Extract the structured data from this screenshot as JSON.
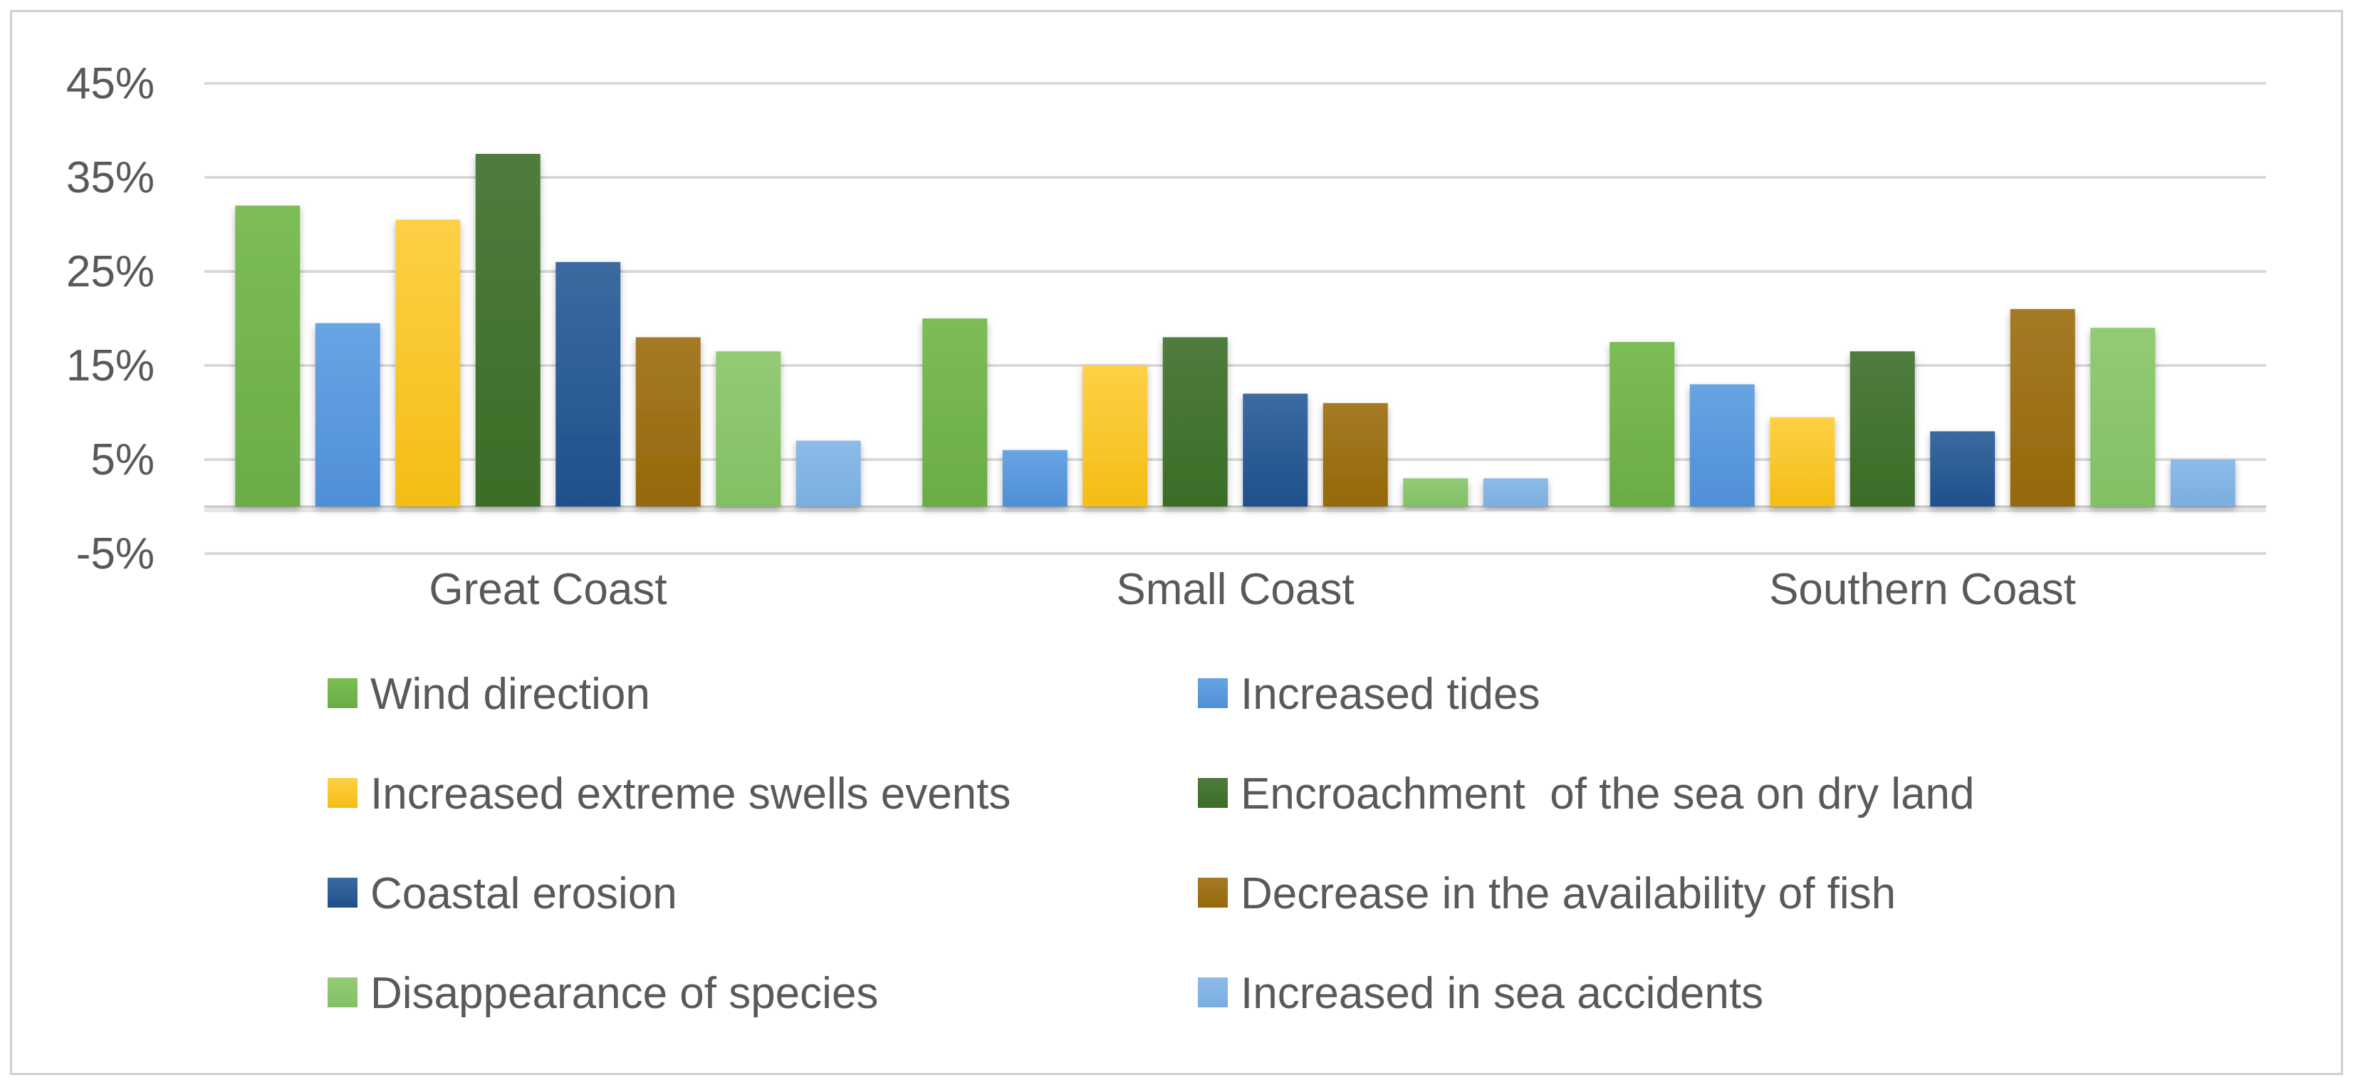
{
  "chart_data": {
    "type": "bar",
    "title": "",
    "xlabel": "",
    "ylabel": "",
    "ylim": [
      -5,
      45
    ],
    "yticks": [
      "45%",
      "35%",
      "25%",
      "15%",
      "5%",
      "-5%"
    ],
    "ytick_values": [
      45,
      35,
      25,
      15,
      5,
      -5
    ],
    "grid": true,
    "legend_position": "bottom",
    "categories": [
      "Great Coast",
      "Small Coast",
      "Southern Coast"
    ],
    "series": [
      {
        "name": "Wind direction",
        "values": [
          32,
          20,
          17.5
        ],
        "color": "#6aac45",
        "color_light": "#7cbd55"
      },
      {
        "name": "Increased tides",
        "values": [
          19.5,
          6,
          13
        ],
        "color": "#4f8fd6",
        "color_light": "#67a4e4"
      },
      {
        "name": "Increased extreme swells events",
        "values": [
          30.5,
          15,
          9.5
        ],
        "color": "#f4bd15",
        "color_light": "#fed046"
      },
      {
        "name": "Encroachment  of the sea on dry land",
        "values": [
          37.5,
          18,
          16.5
        ],
        "color": "#3b6d27",
        "color_light": "#4f7c3d"
      },
      {
        "name": "Coastal erosion",
        "values": [
          26,
          12,
          8
        ],
        "color": "#1f508c",
        "color_light": "#3b6aa0"
      },
      {
        "name": "Decrease in the availability of fish",
        "values": [
          18,
          11,
          21
        ],
        "color": "#946909",
        "color_light": "#a57a26"
      },
      {
        "name": "Disappearance of species",
        "values": [
          16.5,
          3,
          19
        ],
        "color": "#82c064",
        "color_light": "#93ca76"
      },
      {
        "name": "Increased in sea accidents",
        "values": [
          7,
          3,
          5
        ],
        "color": "#7aaee0",
        "color_light": "#8dbbe8"
      }
    ]
  }
}
